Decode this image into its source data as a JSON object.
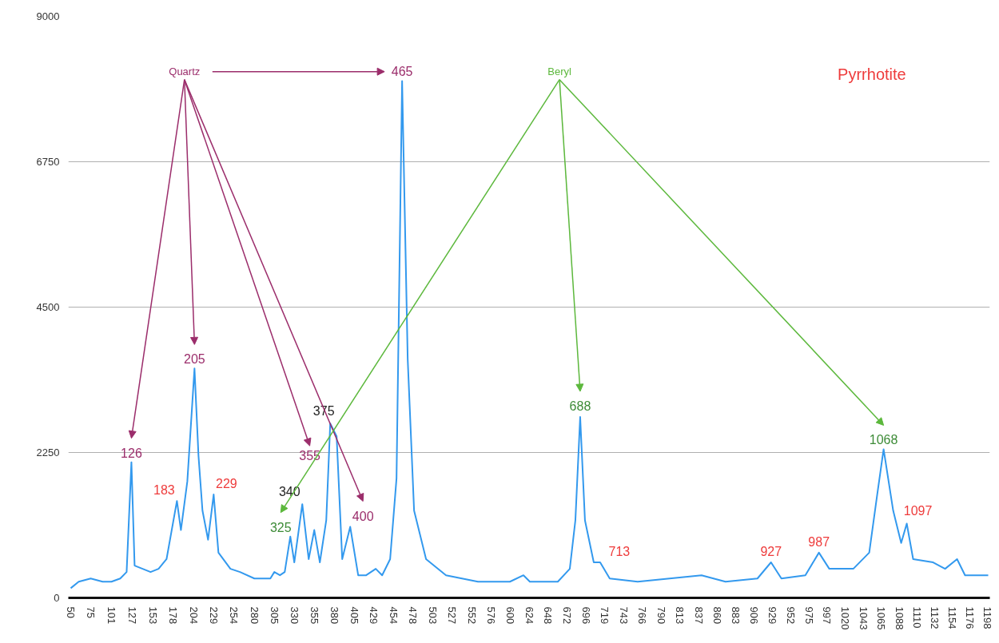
{
  "chart_data": {
    "type": "line",
    "x": [
      50,
      60,
      75,
      90,
      101,
      112,
      120,
      126,
      130,
      140,
      150,
      160,
      170,
      183,
      188,
      196,
      205,
      210,
      215,
      222,
      229,
      235,
      250,
      262,
      280,
      300,
      305,
      312,
      318,
      325,
      330,
      340,
      348,
      355,
      362,
      370,
      375,
      383,
      390,
      400,
      410,
      420,
      432,
      440,
      450,
      458,
      465,
      472,
      480,
      495,
      520,
      560,
      600,
      617,
      625,
      660,
      675,
      682,
      688,
      694,
      705,
      713,
      725,
      760,
      800,
      840,
      870,
      910,
      927,
      940,
      970,
      987,
      1000,
      1030,
      1050,
      1060,
      1068,
      1080,
      1090,
      1097,
      1105,
      1130,
      1145,
      1160,
      1170,
      1185,
      1199
    ],
    "series": [
      {
        "color": "#3399ee",
        "values": [
          150,
          250,
          300,
          250,
          250,
          300,
          400,
          2100,
          500,
          450,
          400,
          450,
          600,
          1500,
          1050,
          1800,
          3550,
          2200,
          1350,
          900,
          1600,
          700,
          450,
          400,
          300,
          300,
          400,
          350,
          400,
          950,
          550,
          1450,
          600,
          1050,
          550,
          1200,
          2700,
          2500,
          600,
          1100,
          350,
          350,
          450,
          350,
          600,
          1850,
          8000,
          3700,
          1350,
          600,
          350,
          250,
          250,
          350,
          250,
          250,
          450,
          1200,
          2800,
          1200,
          550,
          550,
          300,
          250,
          300,
          350,
          250,
          300,
          550,
          300,
          350,
          700,
          450,
          450,
          700,
          1600,
          2300,
          1350,
          850,
          1150,
          600,
          550,
          450,
          600,
          350,
          350,
          350
        ]
      }
    ],
    "xlim": [
      47,
      1201
    ],
    "xticks": [
      50,
      75,
      101,
      127,
      153,
      178,
      204,
      229,
      254,
      280,
      305,
      330,
      355,
      380,
      405,
      429,
      454,
      478,
      503,
      527,
      552,
      576,
      600,
      624,
      648,
      672,
      696,
      719,
      743,
      766,
      790,
      813,
      837,
      860,
      883,
      906,
      929,
      952,
      975,
      997,
      1020,
      1043,
      1065,
      1088,
      1110,
      1132,
      1154,
      1176,
      1198
    ],
    "ylim": [
      0,
      9000
    ],
    "yticks": [
      0,
      2250,
      4500,
      6750,
      9000
    ],
    "grid": "y",
    "annotations": [
      "Quartz",
      "Beryl",
      "Pyrrhotite",
      {
        "text": "126",
        "x": 126,
        "y": 2100
      },
      {
        "text": "205",
        "x": 205,
        "y": 3550
      },
      "355",
      {
        "text": "400",
        "x": 400,
        "y": 1100
      },
      {
        "text": "465",
        "x": 465,
        "y": 8000
      },
      {
        "text": "325",
        "x": 325,
        "y": 950
      },
      {
        "text": "688",
        "x": 688,
        "y": 2800
      },
      {
        "text": "1068",
        "x": 1068,
        "y": 2300
      },
      {
        "text": "340",
        "x": 340,
        "y": 1450
      },
      {
        "text": "375",
        "x": 375,
        "y": 2700
      },
      {
        "text": "183",
        "x": 183,
        "y": 1500
      },
      {
        "text": "229",
        "x": 229,
        "y": 1600
      },
      {
        "text": "713",
        "x": 713,
        "y": 550
      },
      {
        "text": "927",
        "x": 927,
        "y": 550
      },
      {
        "text": "987",
        "x": 987,
        "y": 700
      },
      {
        "text": "1097",
        "x": 1097,
        "y": 1150
      }
    ]
  }
}
